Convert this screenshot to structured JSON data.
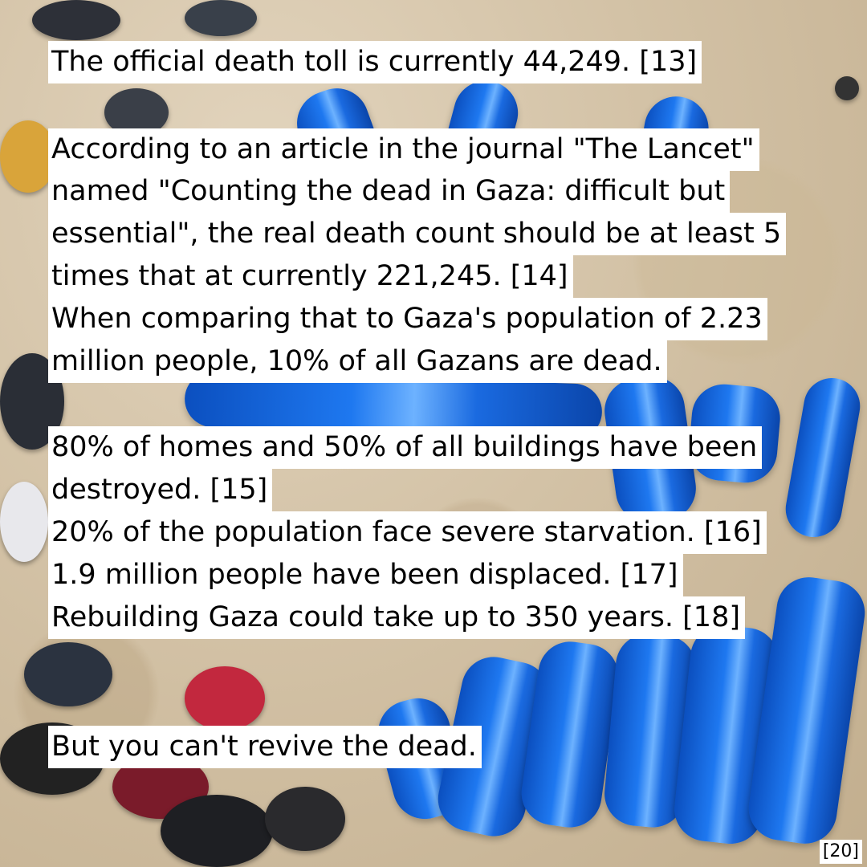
{
  "text": {
    "death_toll": "The official death toll is currently 44,249. [13]",
    "lancet_1": "According to an article in the journal \"The Lancet\"",
    "lancet_2": "named \"Counting the dead in Gaza: difficult but",
    "lancet_3": "essential\", the real death count should be at least 5",
    "lancet_4": "times that at currently 221,245. [14]",
    "population_1": "When comparing that to Gaza's population of 2.23",
    "population_2": "million people, 10% of all Gazans are dead.",
    "homes_1": "80% of homes and 50% of all buildings have been",
    "homes_2": "destroyed. [15]",
    "starvation": "20% of the population face severe starvation. [16]",
    "displaced": "1.9 million people have been displaced. [17]",
    "rebuilding": "Rebuilding Gaza could take up to 350 years. [18]",
    "closing": "But you can't revive the dead.",
    "source_ref": "[20]"
  },
  "colors": {
    "text_bg": "#ffffff",
    "text": "#000000",
    "bag_blue": "#1e78f0",
    "sand": "#d3c2a6"
  }
}
